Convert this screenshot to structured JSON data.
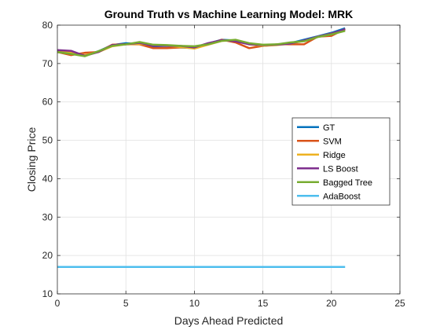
{
  "chart_data": {
    "type": "line",
    "title": "Ground Truth vs Machine Learning Model: MRK",
    "xlabel": "Days Ahead Predicted",
    "ylabel": "Closing Price",
    "xlim": [
      0,
      25
    ],
    "ylim": [
      10,
      80
    ],
    "xticks": [
      0,
      5,
      10,
      15,
      20,
      25
    ],
    "yticks": [
      10,
      20,
      30,
      40,
      50,
      60,
      70,
      80
    ],
    "grid": true,
    "legend_position": "right",
    "x": [
      0,
      1,
      2,
      3,
      4,
      5,
      6,
      7,
      8,
      9,
      10,
      11,
      12,
      13,
      14,
      15,
      16,
      17,
      18,
      19,
      20,
      21
    ],
    "series": [
      {
        "name": "GT",
        "color": "#0072BD",
        "values": [
          73.3,
          72.8,
          72.0,
          73.2,
          74.8,
          75.3,
          75.1,
          74.5,
          74.6,
          74.2,
          74.0,
          75.2,
          76.2,
          76.0,
          75.2,
          74.6,
          74.9,
          75.3,
          76.2,
          77.1,
          78.0,
          79.2
        ]
      },
      {
        "name": "SVM",
        "color": "#D95319",
        "values": [
          73.0,
          72.2,
          72.8,
          73.0,
          74.9,
          75.0,
          75.0,
          74.0,
          74.0,
          74.2,
          74.2,
          75.0,
          76.2,
          75.5,
          74.0,
          74.6,
          75.0,
          75.0,
          75.0,
          77.0,
          77.2,
          79.0
        ]
      },
      {
        "name": "Ridge",
        "color": "#EDB120",
        "values": [
          73.2,
          72.9,
          72.2,
          73.0,
          74.5,
          75.0,
          75.1,
          74.8,
          74.6,
          74.3,
          73.9,
          74.9,
          75.9,
          76.0,
          75.0,
          74.6,
          74.8,
          75.2,
          75.9,
          77.0,
          77.8,
          78.8
        ]
      },
      {
        "name": "LS Boost",
        "color": "#7E2F8E",
        "values": [
          73.5,
          73.3,
          72.0,
          73.0,
          74.8,
          75.0,
          75.4,
          74.6,
          74.6,
          74.6,
          74.2,
          75.3,
          76.1,
          75.8,
          75.0,
          74.8,
          74.9,
          75.2,
          76.0,
          77.0,
          77.8,
          78.9
        ]
      },
      {
        "name": "Bagged Tree",
        "color": "#77AC30",
        "values": [
          73.0,
          72.5,
          71.9,
          73.2,
          74.6,
          75.0,
          75.6,
          74.9,
          74.8,
          74.6,
          74.5,
          75.0,
          75.9,
          76.2,
          75.3,
          74.9,
          75.0,
          75.5,
          75.8,
          76.9,
          77.6,
          78.5
        ]
      },
      {
        "name": "AdaBoost",
        "color": "#4DBEEE",
        "values": [
          17,
          17,
          17,
          17,
          17,
          17,
          17,
          17,
          17,
          17,
          17,
          17,
          17,
          17,
          17,
          17,
          17,
          17,
          17,
          17,
          17,
          17
        ]
      }
    ]
  }
}
